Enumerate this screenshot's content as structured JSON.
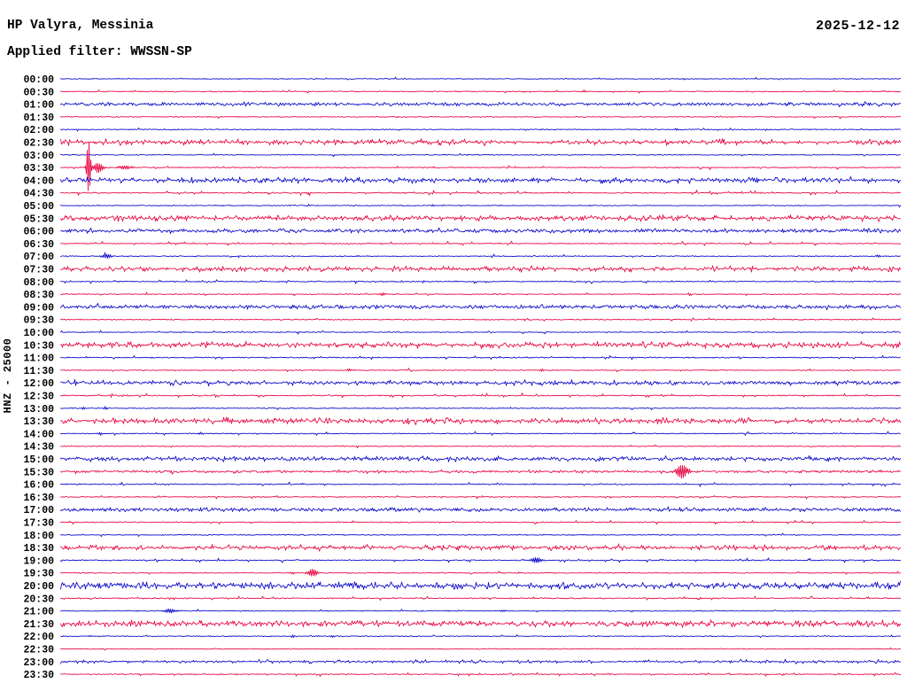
{
  "header": {
    "station_title": "HP Valyra, Messinia",
    "filter_label": "Applied filter: WWSSN-SP",
    "date": "2025-12-12"
  },
  "axis": {
    "channel_label": "HNZ - 25000"
  },
  "colors": {
    "blue": "#1414cc",
    "red": "#e8114b",
    "text": "#000000",
    "background": "#ffffff"
  },
  "chart_data": {
    "type": "line",
    "subtype": "helicorder",
    "station": "HP Valyra, Messinia",
    "filter": "WWSSN-SP",
    "date": "2025-12-12",
    "channel": "HNZ",
    "scale": 25000,
    "minutes_per_row": 30,
    "rows": [
      {
        "time": "00:00",
        "color": "blue",
        "amp": 0.35,
        "sd": 0.01,
        "sa": 1.2,
        "events": []
      },
      {
        "time": "00:30",
        "color": "red",
        "amp": 0.4,
        "sd": 0.02,
        "sa": 1.3,
        "events": [
          {
            "t_min": 18.7,
            "amp": 1.6,
            "w": 1.5
          }
        ]
      },
      {
        "time": "01:00",
        "color": "blue",
        "amp": 1.3,
        "sd": 0.08,
        "sa": 1.0,
        "events": []
      },
      {
        "time": "01:30",
        "color": "red",
        "amp": 0.4,
        "sd": 0.012,
        "sa": 1.2,
        "events": []
      },
      {
        "time": "02:00",
        "color": "blue",
        "amp": 0.4,
        "sd": 0.015,
        "sa": 1.2,
        "events": [
          {
            "t_min": 22.0,
            "amp": 1.4,
            "w": 1.2
          }
        ]
      },
      {
        "time": "02:30",
        "color": "red",
        "amp": 0.8,
        "sd": 0.42,
        "sa": 2.0,
        "events": []
      },
      {
        "time": "03:00",
        "color": "blue",
        "amp": 0.4,
        "sd": 0.015,
        "sa": 1.2,
        "events": []
      },
      {
        "time": "03:30",
        "color": "red",
        "amp": 0.45,
        "sd": 0.03,
        "sa": 1.4,
        "events": [
          {
            "t_min": 1.0,
            "amp": 32,
            "w": 1.6
          },
          {
            "t_min": 1.35,
            "amp": 6,
            "w": 4
          },
          {
            "t_min": 2.3,
            "amp": 2,
            "w": 6
          }
        ]
      },
      {
        "time": "04:00",
        "color": "blue",
        "amp": 0.9,
        "sd": 0.45,
        "sa": 2.0,
        "events": []
      },
      {
        "time": "04:30",
        "color": "red",
        "amp": 0.45,
        "sd": 0.06,
        "sa": 1.8,
        "events": []
      },
      {
        "time": "05:00",
        "color": "blue",
        "amp": 0.4,
        "sd": 0.015,
        "sa": 1.2,
        "events": [
          {
            "t_min": 13.3,
            "amp": 1.6,
            "w": 1.2
          }
        ]
      },
      {
        "time": "05:30",
        "color": "red",
        "amp": 0.8,
        "sd": 0.45,
        "sa": 2.0,
        "events": []
      },
      {
        "time": "06:00",
        "color": "blue",
        "amp": 1.5,
        "sd": 0.05,
        "sa": 1.0,
        "events": []
      },
      {
        "time": "06:30",
        "color": "red",
        "amp": 0.45,
        "sd": 0.05,
        "sa": 1.6,
        "events": []
      },
      {
        "time": "07:00",
        "color": "blue",
        "amp": 0.4,
        "sd": 0.02,
        "sa": 1.3,
        "events": [
          {
            "t_min": 1.65,
            "amp": 2.8,
            "w": 4
          },
          {
            "t_min": 29.2,
            "amp": 1.6,
            "w": 2
          }
        ]
      },
      {
        "time": "07:30",
        "color": "red",
        "amp": 0.8,
        "sd": 0.4,
        "sa": 1.9,
        "events": []
      },
      {
        "time": "08:00",
        "color": "blue",
        "amp": 0.45,
        "sd": 0.04,
        "sa": 1.5,
        "events": []
      },
      {
        "time": "08:30",
        "color": "red",
        "amp": 0.4,
        "sd": 0.02,
        "sa": 1.3,
        "events": [
          {
            "t_min": 11.5,
            "amp": 2.0,
            "w": 1.5
          }
        ]
      },
      {
        "time": "09:00",
        "color": "blue",
        "amp": 1.5,
        "sd": 0.15,
        "sa": 1.2,
        "events": []
      },
      {
        "time": "09:30",
        "color": "red",
        "amp": 0.45,
        "sd": 0.025,
        "sa": 1.4,
        "events": []
      },
      {
        "time": "10:00",
        "color": "blue",
        "amp": 0.4,
        "sd": 0.02,
        "sa": 1.3,
        "events": []
      },
      {
        "time": "10:30",
        "color": "red",
        "amp": 0.85,
        "sd": 0.45,
        "sa": 2.1,
        "events": []
      },
      {
        "time": "11:00",
        "color": "blue",
        "amp": 0.45,
        "sd": 0.05,
        "sa": 1.6,
        "events": []
      },
      {
        "time": "11:30",
        "color": "red",
        "amp": 0.4,
        "sd": 0.02,
        "sa": 1.2,
        "events": [
          {
            "t_min": 10.3,
            "amp": 1.8,
            "w": 1.5
          },
          {
            "t_min": 17.2,
            "amp": 1.5,
            "w": 1.5
          }
        ]
      },
      {
        "time": "12:00",
        "color": "blue",
        "amp": 1.2,
        "sd": 0.35,
        "sa": 1.6,
        "events": []
      },
      {
        "time": "12:30",
        "color": "red",
        "amp": 0.45,
        "sd": 0.05,
        "sa": 1.6,
        "events": []
      },
      {
        "time": "13:00",
        "color": "blue",
        "amp": 0.4,
        "sd": 0.02,
        "sa": 1.2,
        "events": [
          {
            "t_min": 0.8,
            "amp": 1.6,
            "w": 1.5
          },
          {
            "t_min": 1.6,
            "amp": 1.6,
            "w": 1.5
          }
        ]
      },
      {
        "time": "13:30",
        "color": "red",
        "amp": 0.9,
        "sd": 0.45,
        "sa": 2.1,
        "events": []
      },
      {
        "time": "14:00",
        "color": "blue",
        "amp": 0.4,
        "sd": 0.03,
        "sa": 1.4,
        "events": [
          {
            "t_min": 1.4,
            "amp": 1.5,
            "w": 2
          },
          {
            "t_min": 5.0,
            "amp": 1.3,
            "w": 2
          }
        ]
      },
      {
        "time": "14:30",
        "color": "red",
        "amp": 0.4,
        "sd": 0.012,
        "sa": 1.2,
        "events": []
      },
      {
        "time": "15:00",
        "color": "blue",
        "amp": 1.1,
        "sd": 0.4,
        "sa": 1.6,
        "events": []
      },
      {
        "time": "15:30",
        "color": "red",
        "amp": 0.9,
        "sd": 0.08,
        "sa": 1.2,
        "events": [
          {
            "t_min": 22.2,
            "amp": 8,
            "w": 5
          }
        ]
      },
      {
        "time": "16:00",
        "color": "blue",
        "amp": 0.45,
        "sd": 0.04,
        "sa": 1.5,
        "events": []
      },
      {
        "time": "16:30",
        "color": "red",
        "amp": 0.45,
        "sd": 0.04,
        "sa": 1.4,
        "events": []
      },
      {
        "time": "17:00",
        "color": "blue",
        "amp": 1.5,
        "sd": 0.08,
        "sa": 1.0,
        "events": []
      },
      {
        "time": "17:30",
        "color": "red",
        "amp": 0.45,
        "sd": 0.04,
        "sa": 1.5,
        "events": []
      },
      {
        "time": "18:00",
        "color": "blue",
        "amp": 0.4,
        "sd": 0.012,
        "sa": 1.2,
        "events": []
      },
      {
        "time": "18:30",
        "color": "red",
        "amp": 1.0,
        "sd": 0.35,
        "sa": 1.8,
        "events": []
      },
      {
        "time": "19:00",
        "color": "blue",
        "amp": 0.45,
        "sd": 0.06,
        "sa": 1.6,
        "events": [
          {
            "t_min": 17.0,
            "amp": 3,
            "w": 5
          }
        ]
      },
      {
        "time": "19:30",
        "color": "red",
        "amp": 0.4,
        "sd": 0.02,
        "sa": 1.3,
        "events": [
          {
            "t_min": 9.0,
            "amp": 4.5,
            "w": 4
          },
          {
            "t_min": 8.3,
            "amp": 1.5,
            "w": 1.5
          }
        ]
      },
      {
        "time": "20:00",
        "color": "blue",
        "amp": 1.0,
        "sd": 0.55,
        "sa": 2.4,
        "events": []
      },
      {
        "time": "20:30",
        "color": "red",
        "amp": 0.45,
        "sd": 0.04,
        "sa": 1.5,
        "events": [
          {
            "t_min": 22.8,
            "amp": 1.8,
            "w": 2
          }
        ]
      },
      {
        "time": "21:00",
        "color": "blue",
        "amp": 0.4,
        "sd": 0.02,
        "sa": 1.3,
        "events": [
          {
            "t_min": 3.9,
            "amp": 2.5,
            "w": 5
          },
          {
            "t_min": 15.8,
            "amp": 1.4,
            "w": 3
          }
        ]
      },
      {
        "time": "21:30",
        "color": "red",
        "amp": 0.7,
        "sd": 0.55,
        "sa": 2.2,
        "events": []
      },
      {
        "time": "22:00",
        "color": "blue",
        "amp": 0.4,
        "sd": 0.02,
        "sa": 1.2,
        "events": [
          {
            "t_min": 8.3,
            "amp": 1.8,
            "w": 1.5
          },
          {
            "t_min": 9.7,
            "amp": 1.5,
            "w": 1.5
          }
        ]
      },
      {
        "time": "22:30",
        "color": "red",
        "amp": 0.35,
        "sd": 0.008,
        "sa": 1.0,
        "events": []
      },
      {
        "time": "23:00",
        "color": "blue",
        "amp": 0.6,
        "sd": 0.2,
        "sa": 1.4,
        "events": []
      },
      {
        "time": "23:30",
        "color": "red",
        "amp": 0.45,
        "sd": 0.05,
        "sa": 1.5,
        "events": []
      }
    ]
  }
}
